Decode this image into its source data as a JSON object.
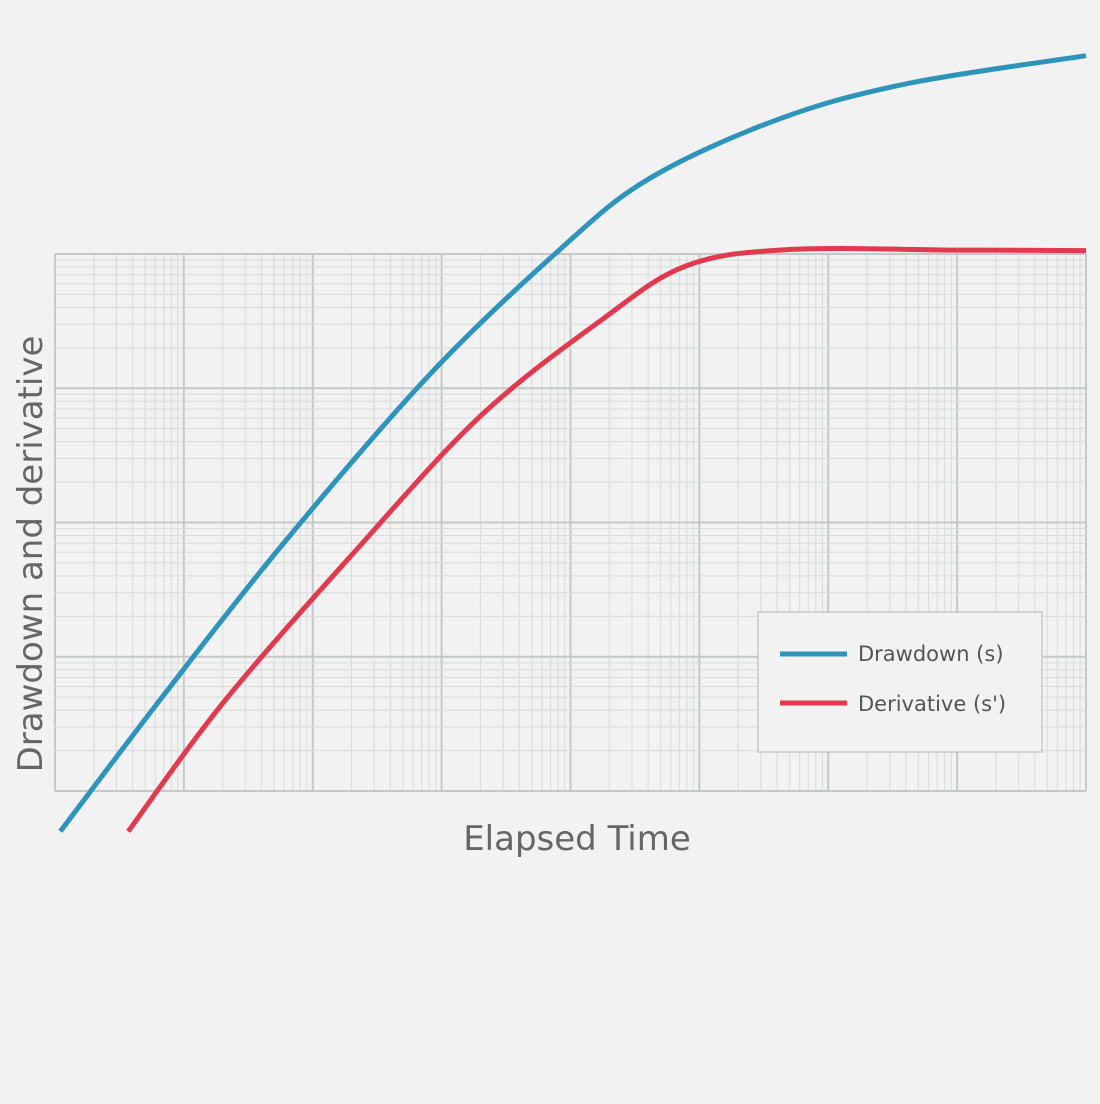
{
  "chart_data": {
    "type": "line",
    "title": "",
    "xlabel": "Elapsed Time",
    "ylabel": "Drawdown and derivative",
    "x_scale": "log",
    "y_scale": "log",
    "x_decades": 8,
    "y_decades": 4,
    "grid": true,
    "legend_position": "bottom-right",
    "series": [
      {
        "name": "Drawdown (s)",
        "color": "#2e94bb",
        "points": [
          [
            1.1,
            5e-06
          ],
          [
            7,
            5.2e-05
          ],
          [
            60,
            0.00071
          ],
          [
            800,
            0.0125
          ],
          [
            8000,
            0.105
          ],
          [
            40000,
            0.36
          ],
          [
            400000,
            1.0
          ],
          [
            4000000,
            1.85
          ],
          [
            100000000,
            3.0
          ]
        ]
      },
      {
        "name": "Derivative (s')",
        "color": "#e3394f",
        "points": [
          [
            3.7,
            5e-06
          ],
          [
            20,
            4.5e-05
          ],
          [
            200,
            0.00057
          ],
          [
            2000,
            0.0062
          ],
          [
            18000,
            0.033
          ],
          [
            80000,
            0.082
          ],
          [
            500000,
            0.108
          ],
          [
            10000000,
            0.107
          ],
          [
            100000000,
            0.106
          ]
        ]
      }
    ]
  }
}
